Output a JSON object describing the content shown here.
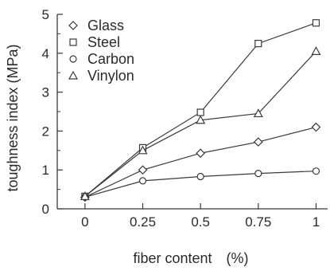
{
  "chart_data": {
    "type": "line",
    "title": "",
    "xlabel": "fiber content　(%)",
    "ylabel": "toughness index (MPa)",
    "x": [
      0,
      0.25,
      0.5,
      0.75,
      1
    ],
    "x_tick_labels": [
      "0",
      "0.25",
      "0.5",
      "0.75",
      "1"
    ],
    "y_tick_labels": [
      "0",
      "1",
      "2",
      "3",
      "4",
      "5"
    ],
    "xlim": [
      -0.12,
      1.05
    ],
    "ylim": [
      0,
      5
    ],
    "grid": false,
    "legend_position": "top-left",
    "series": [
      {
        "name": "Glass",
        "marker": "diamond",
        "values": [
          0.3,
          1.0,
          1.43,
          1.72,
          2.1
        ]
      },
      {
        "name": "Steel",
        "marker": "square",
        "values": [
          0.32,
          1.57,
          2.48,
          4.25,
          4.78
        ]
      },
      {
        "name": "Carbon",
        "marker": "circle",
        "values": [
          0.3,
          0.72,
          0.83,
          0.91,
          0.97
        ]
      },
      {
        "name": "Vinylon",
        "marker": "triangle",
        "values": [
          0.32,
          1.5,
          2.28,
          2.45,
          4.05
        ]
      }
    ],
    "colors": {
      "line": "#3a3a3a",
      "text": "#2a2a2a"
    }
  }
}
